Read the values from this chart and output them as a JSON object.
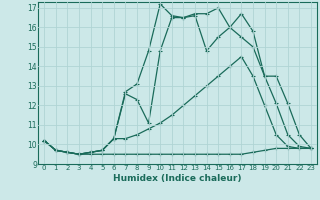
{
  "xlabel": "Humidex (Indice chaleur)",
  "bg_color": "#cce8e8",
  "line_color": "#1a6b5a",
  "grid_color": "#b0d4d4",
  "xlim": [
    -0.5,
    23.5
  ],
  "ylim": [
    9,
    17.3
  ],
  "yticks": [
    9,
    10,
    11,
    12,
    13,
    14,
    15,
    16,
    17
  ],
  "xticks": [
    0,
    1,
    2,
    3,
    4,
    5,
    6,
    7,
    8,
    9,
    10,
    11,
    12,
    13,
    14,
    15,
    16,
    17,
    18,
    19,
    20,
    21,
    22,
    23
  ],
  "line_main_x": [
    0,
    1,
    2,
    3,
    4,
    5,
    6,
    7,
    8,
    9,
    10,
    11,
    12,
    13,
    14,
    15,
    16,
    17,
    18,
    19,
    20,
    21,
    22,
    23
  ],
  "line_main_y": [
    10.2,
    9.7,
    9.6,
    9.5,
    9.6,
    9.7,
    10.3,
    12.7,
    13.1,
    14.8,
    17.2,
    16.6,
    16.5,
    16.7,
    16.7,
    17.0,
    16.0,
    15.5,
    15.0,
    13.5,
    12.1,
    10.5,
    9.9,
    9.8
  ],
  "line_mid_x": [
    0,
    1,
    2,
    3,
    4,
    5,
    6,
    7,
    8,
    9,
    10,
    11,
    12,
    13,
    14,
    15,
    16,
    17,
    18,
    19,
    20,
    21,
    22,
    23
  ],
  "line_mid_y": [
    10.2,
    9.7,
    9.6,
    9.5,
    9.6,
    9.7,
    10.3,
    12.6,
    12.3,
    11.1,
    14.8,
    16.5,
    16.5,
    16.6,
    14.8,
    15.5,
    16.0,
    16.7,
    15.8,
    13.5,
    13.5,
    12.1,
    10.5,
    9.8
  ],
  "line_low_x": [
    0,
    1,
    2,
    3,
    4,
    5,
    6,
    7,
    8,
    9,
    10,
    11,
    12,
    13,
    14,
    15,
    16,
    17,
    18,
    19,
    20,
    21,
    22,
    23
  ],
  "line_low_y": [
    10.2,
    9.7,
    9.6,
    9.5,
    9.6,
    9.7,
    10.3,
    10.3,
    10.5,
    10.8,
    11.1,
    11.5,
    12.0,
    12.5,
    13.0,
    13.5,
    14.0,
    14.5,
    13.5,
    12.0,
    10.5,
    9.9,
    9.8,
    9.8
  ],
  "line_flat_x": [
    0,
    1,
    2,
    3,
    4,
    5,
    6,
    7,
    8,
    9,
    10,
    11,
    12,
    13,
    14,
    15,
    16,
    17,
    18,
    19,
    20,
    21,
    22,
    23
  ],
  "line_flat_y": [
    10.2,
    9.7,
    9.6,
    9.5,
    9.5,
    9.5,
    9.5,
    9.5,
    9.5,
    9.5,
    9.5,
    9.5,
    9.5,
    9.5,
    9.5,
    9.5,
    9.5,
    9.5,
    9.6,
    9.7,
    9.8,
    9.8,
    9.8,
    9.8
  ]
}
